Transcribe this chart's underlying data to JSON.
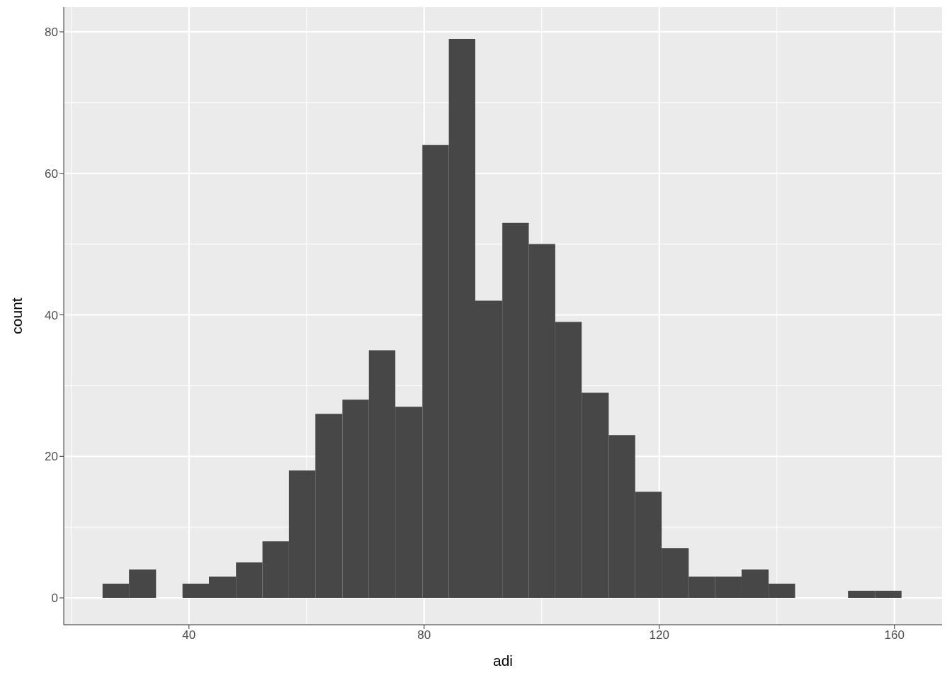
{
  "chart_data": {
    "type": "histogram",
    "xlabel": "adi",
    "ylabel": "count",
    "bins": [
      25.3,
      29.8,
      34.4,
      38.9,
      43.4,
      48.0,
      52.5,
      57.0,
      61.5,
      66.1,
      70.6,
      75.1,
      79.7,
      84.2,
      88.7,
      93.3,
      97.8,
      102.3,
      106.8,
      111.4,
      115.9,
      120.4,
      125.0,
      129.5,
      134.0,
      138.6,
      143.1,
      152.1,
      156.7,
      161.2
    ],
    "values": [
      2,
      4,
      0,
      2,
      3,
      5,
      8,
      18,
      26,
      28,
      35,
      27,
      64,
      79,
      42,
      53,
      50,
      39,
      29,
      23,
      15,
      7,
      3,
      3,
      4,
      2,
      0,
      1,
      1
    ],
    "color": "#474747",
    "xlim": [
      18.7,
      168.1
    ],
    "xticks": [
      40,
      80,
      120,
      160
    ],
    "ylim": [
      -3.8,
      83.5
    ],
    "yticks": [
      0,
      20,
      40,
      60,
      80
    ],
    "grid": true
  }
}
